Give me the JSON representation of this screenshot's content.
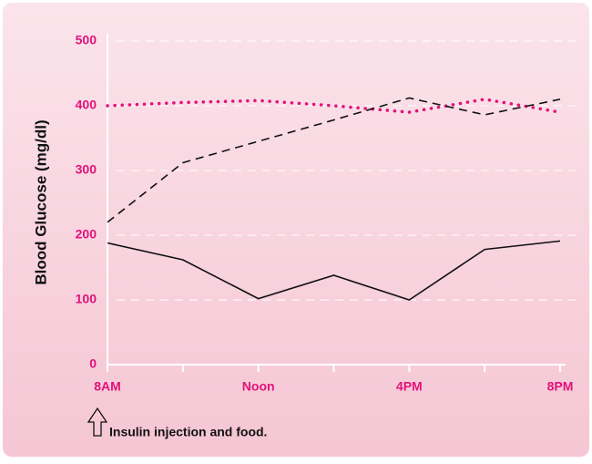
{
  "chart_data": {
    "type": "line",
    "y_label": "Blood Glucose (mg/dl)",
    "annotation": "Insulin injection and food.",
    "categories": [
      "8AM",
      null,
      "Noon",
      null,
      "4PM",
      null,
      "8PM"
    ],
    "series": [
      {
        "color": "#e2127a",
        "style": "dotted",
        "values": [
          400,
          405,
          408,
          400,
          390,
          410,
          390
        ]
      },
      {
        "color": "#111111",
        "style": "dashed",
        "values": [
          220,
          312,
          345,
          378,
          412,
          386,
          410
        ]
      },
      {
        "color": "#111111",
        "style": "solid",
        "values": [
          188,
          162,
          102,
          138,
          100,
          178,
          191
        ]
      }
    ],
    "ylim": [
      0,
      500
    ],
    "yticks": [
      0,
      100,
      200,
      300,
      400,
      500
    ],
    "grid": true
  }
}
